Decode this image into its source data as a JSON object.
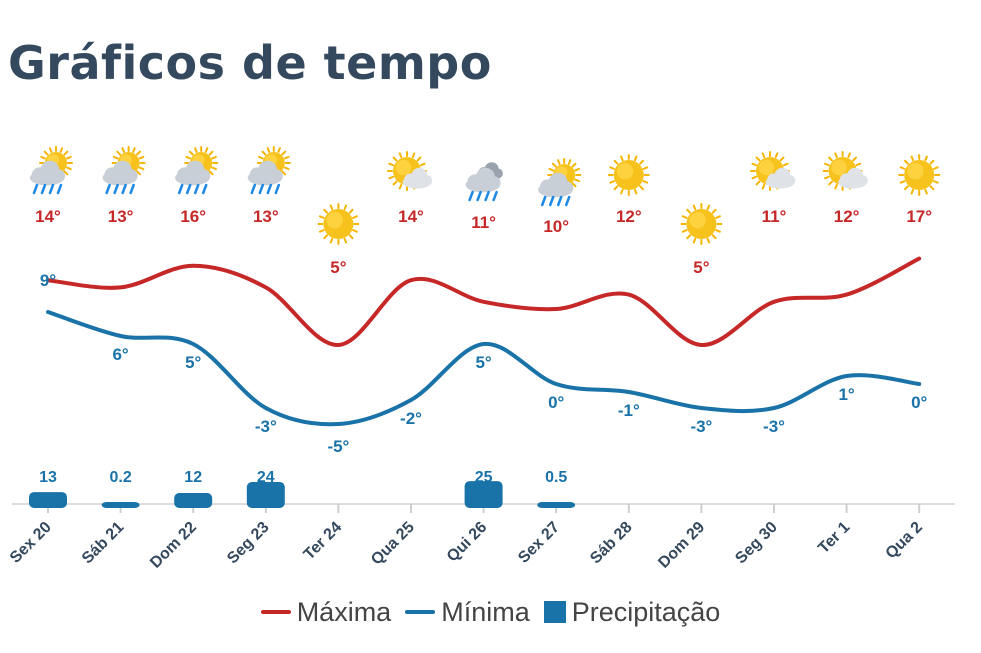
{
  "page": {
    "title": "Gráficos de tempo"
  },
  "colors": {
    "max": "#c62828",
    "min": "#1a73a8",
    "precip": "#1a73a8",
    "text_dark": "#34495e",
    "axis": "#dddddd"
  },
  "icons": [
    "sun-cloud-rain-icon",
    "sun-cloud-rain-icon",
    "sun-cloud-rain-icon",
    "sun-cloud-rain-icon",
    "sun-icon",
    "sun-cloud-icon",
    "cloud-rain-icon",
    "sun-cloud-rain-icon",
    "sun-icon",
    "sun-icon",
    "sun-cloud-icon",
    "sun-cloud-icon",
    "sun-icon"
  ],
  "legend": {
    "max_label": "Máxima",
    "min_label": "Mínima",
    "precip_label": "Precipitação"
  },
  "chart_data": {
    "type": "line",
    "categories": [
      "Sex 20",
      "Sáb 21",
      "Dom 22",
      "Seg 23",
      "Ter 24",
      "Qua 25",
      "Qui 26",
      "Sex 27",
      "Sáb 28",
      "Dom 29",
      "Seg 30",
      "Ter 1",
      "Qua 2"
    ],
    "series": [
      {
        "name": "Máxima",
        "type": "line",
        "values": [
          14,
          13,
          16,
          13,
          5,
          14,
          11,
          10,
          12,
          5,
          11,
          12,
          17
        ],
        "labels": [
          "14°",
          "13°",
          "16°",
          "13°",
          "5°",
          "14°",
          "11°",
          "10°",
          "12°",
          "5°",
          "11°",
          "12°",
          "17°"
        ]
      },
      {
        "name": "Mínima",
        "type": "line",
        "values": [
          9,
          6,
          5,
          -3,
          -5,
          -2,
          5,
          0,
          -1,
          -3,
          -3,
          1,
          0
        ],
        "labels": [
          "9°",
          "6°",
          "5°",
          "-3°",
          "-5°",
          "-2°",
          "5°",
          "0°",
          "-1°",
          "-3°",
          "-3°",
          "1°",
          "0°"
        ]
      },
      {
        "name": "Precipitação",
        "type": "bar",
        "values": [
          13,
          0.2,
          12,
          24,
          0,
          0,
          25,
          0.5,
          0,
          0,
          0,
          0,
          0
        ],
        "labels": [
          "13",
          "0.2",
          "12",
          "24",
          "",
          "",
          "25",
          "0.5",
          "",
          "",
          "",
          "",
          ""
        ]
      }
    ],
    "legend_position": "bottom",
    "grid": false
  }
}
